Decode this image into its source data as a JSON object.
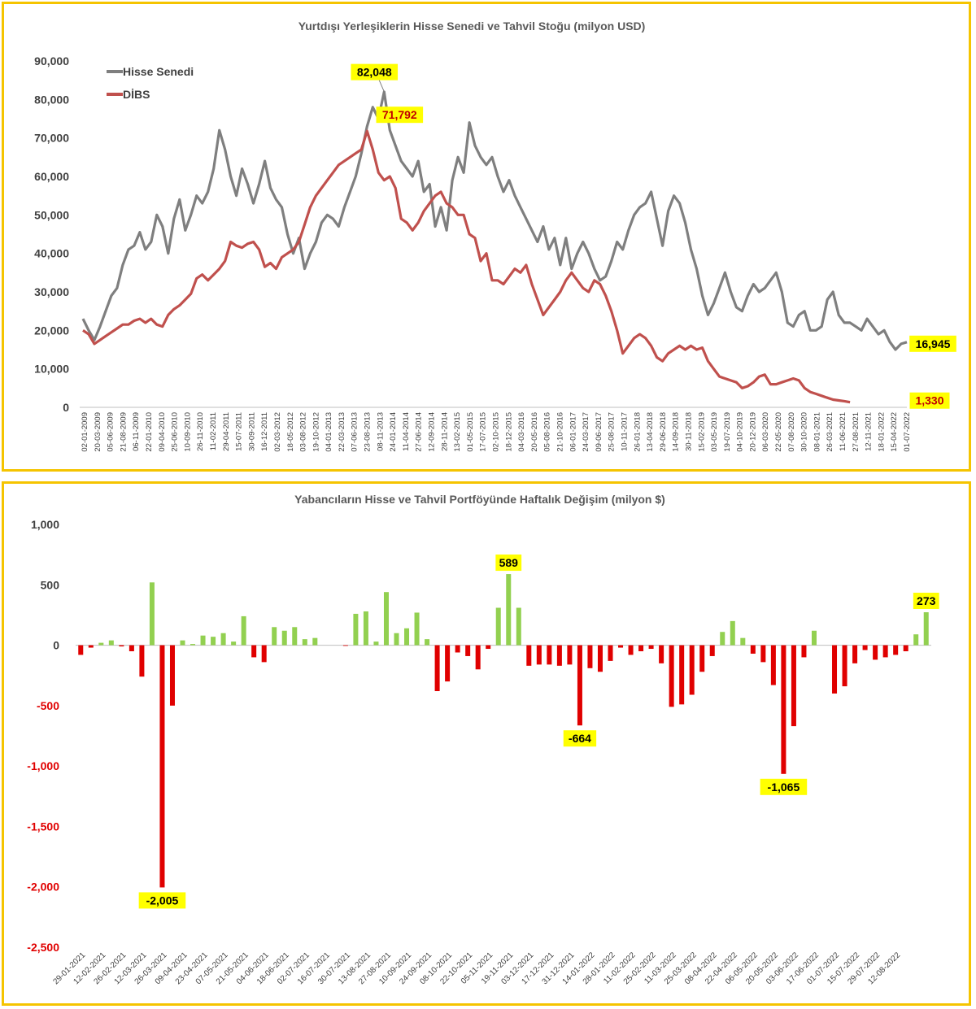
{
  "chart_data": [
    {
      "type": "line",
      "title": "Yurtdışı Yerleşiklerin Hisse Senedi ve Tahvil Stoğu (milyon USD)",
      "ylim": [
        0,
        90000
      ],
      "yticks": [
        "0",
        "10,000",
        "20,000",
        "30,000",
        "40,000",
        "50,000",
        "60,000",
        "70,000",
        "80,000",
        "90,000"
      ],
      "xlabels": [
        "02-01-2009",
        "20-03-2009",
        "05-06-2009",
        "21-08-2009",
        "06-11-2009",
        "22-01-2010",
        "09-04-2010",
        "25-06-2010",
        "10-09-2010",
        "26-11-2010",
        "11-02-2011",
        "29-04-2011",
        "15-07-2011",
        "30-09-2011",
        "16-12-2011",
        "02-03-2012",
        "18-05-2012",
        "03-08-2012",
        "19-10-2012",
        "04-01-2013",
        "22-03-2013",
        "07-06-2013",
        "23-08-2013",
        "08-11-2013",
        "24-01-2014",
        "11-04-2014",
        "27-06-2014",
        "12-09-2014",
        "28-11-2014",
        "13-02-2015",
        "01-05-2015",
        "17-07-2015",
        "02-10-2015",
        "18-12-2015",
        "04-03-2016",
        "20-05-2016",
        "05-08-2016",
        "21-10-2016",
        "06-01-2017",
        "24-03-2017",
        "09-06-2017",
        "25-08-2017",
        "10-11-2017",
        "26-01-2018",
        "13-04-2018",
        "29-06-2018",
        "14-09-2018",
        "30-11-2018",
        "15-02-2019",
        "03-05-2019",
        "19-07-2019",
        "04-10-2019",
        "20-12-2019",
        "06-03-2020",
        "22-05-2020",
        "07-08-2020",
        "30-10-2020",
        "08-01-2021",
        "26-03-2021",
        "11-06-2021",
        "27-08-2021",
        "12-11-2021",
        "18-01-2022",
        "15-04-2022",
        "01-07-2022"
      ],
      "grid": false,
      "legend_position": "top-left",
      "series": [
        {
          "name": "Hisse Senedi",
          "color": "#7f7f7f",
          "values": [
            23000,
            20000,
            17500,
            21000,
            25000,
            29000,
            31000,
            37000,
            41000,
            42000,
            45500,
            41000,
            43000,
            50000,
            47000,
            40000,
            49000,
            54000,
            46000,
            50000,
            55000,
            53000,
            56000,
            62000,
            72000,
            67000,
            60000,
            55000,
            62000,
            58000,
            53000,
            58000,
            64000,
            57000,
            54000,
            52000,
            45000,
            40000,
            44000,
            36000,
            40000,
            43000,
            48000,
            50000,
            49000,
            47000,
            52000,
            56000,
            60000,
            66000,
            73000,
            78000,
            75000,
            82000,
            72000,
            68000,
            64000,
            62000,
            60000,
            64000,
            56000,
            58000,
            47000,
            52000,
            46000,
            59000,
            65000,
            61000,
            74000,
            68000,
            65000,
            63000,
            65000,
            60000,
            56000,
            59000,
            55000,
            52000,
            49000,
            46000,
            43000,
            47000,
            41000,
            44000,
            37000,
            44000,
            36000,
            40000,
            43000,
            40000,
            36000,
            33000,
            34000,
            38000,
            43000,
            41000,
            46000,
            50000,
            52000,
            53000,
            56000,
            49000,
            42000,
            51000,
            55000,
            53000,
            48000,
            41000,
            36000,
            29000,
            24000,
            27000,
            31000,
            35000,
            30000,
            26000,
            25000,
            29000,
            32000,
            30000,
            31000,
            33000,
            35000,
            30000,
            22000,
            21000,
            24000,
            25000,
            20000,
            20000,
            21000,
            28000,
            30000,
            24000,
            22000,
            22000,
            21000,
            20000,
            23000,
            21000,
            19000,
            20000,
            17000,
            15000,
            16500,
            16945
          ]
        },
        {
          "name": "DİBS",
          "color": "#c0504d",
          "values": [
            20000,
            19000,
            16500,
            17500,
            18500,
            19500,
            20500,
            21500,
            21500,
            22500,
            23000,
            22000,
            23000,
            21500,
            21000,
            24000,
            25500,
            26500,
            28000,
            29500,
            33500,
            34500,
            33000,
            34500,
            36000,
            38000,
            43000,
            42000,
            41500,
            42500,
            43000,
            41000,
            36500,
            37500,
            36000,
            39000,
            40000,
            41000,
            43000,
            47500,
            52000,
            55000,
            57000,
            59000,
            61000,
            63000,
            64000,
            65000,
            66000,
            67000,
            71792,
            67000,
            61000,
            59000,
            60000,
            57000,
            49000,
            48000,
            46000,
            48000,
            51000,
            53000,
            55000,
            56000,
            53000,
            52000,
            50000,
            50000,
            45000,
            44000,
            38000,
            40000,
            33000,
            33000,
            32000,
            34000,
            36000,
            35000,
            37000,
            32000,
            28000,
            24000,
            26000,
            28000,
            30000,
            33000,
            35000,
            33000,
            31000,
            30000,
            33000,
            32000,
            29000,
            25000,
            20000,
            14000,
            16000,
            18000,
            19000,
            18000,
            16000,
            13000,
            12000,
            14000,
            15000,
            16000,
            15000,
            16000,
            15000,
            15500,
            12000,
            10000,
            8000,
            7500,
            7000,
            6500,
            5000,
            5500,
            6500,
            8000,
            8500,
            6000,
            6000,
            6500,
            7000,
            7500,
            7000,
            5000,
            4000,
            3500,
            3000,
            2500,
            2000,
            1800,
            1600,
            1330
          ]
        }
      ],
      "annotations": [
        {
          "text": "82,048",
          "x_index": 53,
          "y": 82048,
          "bg": "#ffff00",
          "color": "#000000"
        },
        {
          "text": "71,792",
          "x_index": 50,
          "y": 71792,
          "bg": "#ffff00",
          "color": "#c00000"
        },
        {
          "text": "16,945",
          "x_index": 143,
          "y": 16945,
          "bg": "#ffff00",
          "color": "#000000"
        },
        {
          "text": "1,330",
          "x_index": 143,
          "y": 1330,
          "bg": "#ffff00",
          "color": "#c00000"
        }
      ]
    },
    {
      "type": "bar",
      "title": "Yabancıların Hisse ve Tahvil Portföyünde Haftalık Değişim (milyon $)",
      "ylim": [
        -2500,
        1000
      ],
      "yticks": [
        "1,000",
        "500",
        "0",
        "-500",
        "-1,000",
        "-1,500",
        "-2,000",
        "-2,500"
      ],
      "xlabels": [
        "29-01-2021",
        "12-02-2021",
        "26-02-2021",
        "12-03-2021",
        "26-03-2021",
        "09-04-2021",
        "23-04-2021",
        "07-05-2021",
        "21-05-2021",
        "04-06-2021",
        "18-06-2021",
        "02-07-2021",
        "16-07-2021",
        "30-07-2021",
        "13-08-2021",
        "27-08-2021",
        "10-09-2021",
        "24-09-2021",
        "08-10-2021",
        "22-10-2021",
        "05-11-2021",
        "19-11-2021",
        "03-12-2021",
        "17-12-2021",
        "31-12-2021",
        "14-01-2022",
        "28-01-2022",
        "11-02-2022",
        "25-02-2022",
        "11-03-2022",
        "25-03-2022",
        "08-04-2022",
        "22-04-2022",
        "06-05-2022",
        "20-05-2022",
        "03-06-2022",
        "17-06-2022",
        "01-07-2022",
        "15-07-2022",
        "29-07-2022",
        "12-08-2022"
      ],
      "positive_color": "#92d050",
      "negative_color": "#e00000",
      "values": [
        -80,
        -20,
        20,
        40,
        -10,
        -50,
        -260,
        520,
        -2005,
        -500,
        40,
        10,
        80,
        70,
        100,
        30,
        240,
        -100,
        -140,
        150,
        120,
        150,
        50,
        60,
        0,
        0,
        -5,
        260,
        280,
        30,
        440,
        100,
        140,
        270,
        50,
        -380,
        -300,
        -60,
        -90,
        -200,
        -30,
        310,
        589,
        310,
        -170,
        -160,
        -160,
        -170,
        -160,
        -664,
        -190,
        -220,
        -130,
        -20,
        -80,
        -50,
        -30,
        -150,
        -510,
        -490,
        -410,
        -220,
        -90,
        110,
        200,
        60,
        -70,
        -140,
        -330,
        -1065,
        -670,
        -100,
        120,
        0,
        -400,
        -340,
        -150,
        -40,
        -120,
        -100,
        -80,
        -50,
        90,
        273
      ],
      "annotations": [
        {
          "text": "-2,005",
          "index": 8,
          "y": -2005
        },
        {
          "text": "589",
          "index": 42,
          "y": 589
        },
        {
          "text": "-664",
          "index": 49,
          "y": -664
        },
        {
          "text": "-1,065",
          "index": 69,
          "y": -1065
        },
        {
          "text": "273",
          "index": 83,
          "y": 273
        }
      ]
    }
  ]
}
